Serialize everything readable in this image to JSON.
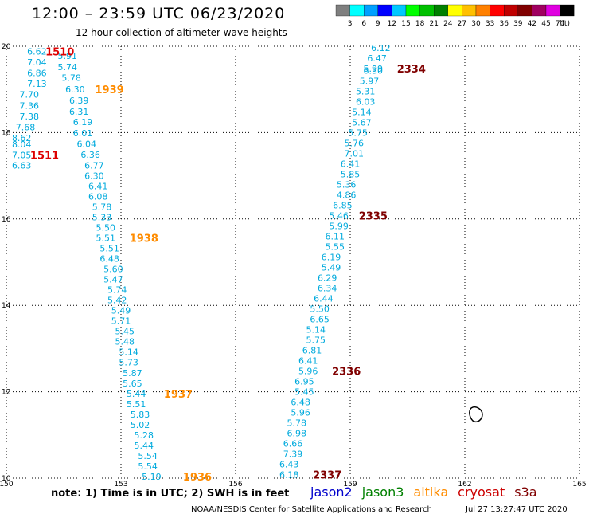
{
  "header": {
    "title": "12:00 – 23:59 UTC 06/23/2020",
    "subtitle": "12 hour collection of altimeter wave heights"
  },
  "colorbar": {
    "unit_label": "(ft)",
    "ticks": [
      "3",
      "6",
      "9",
      "12",
      "15",
      "18",
      "21",
      "24",
      "27",
      "30",
      "33",
      "36",
      "39",
      "42",
      "45",
      "70"
    ],
    "colors": [
      "#7f7f7f",
      "#00ffff",
      "#00a0ff",
      "#0000ff",
      "#00c8ff",
      "#00ff00",
      "#00c000",
      "#008000",
      "#ffff00",
      "#ffc000",
      "#ff8000",
      "#ff0000",
      "#c00000",
      "#800000",
      "#a00060",
      "#e000e0",
      "#000000"
    ]
  },
  "footer": {
    "note": "note: 1) Time is in UTC; 2) SWH is in feet",
    "credit": "NOAA/NESDIS Center for Satellite Applications and Research",
    "timestamp": "Jul 27 13:27:47 UTC 2020"
  },
  "legend": [
    {
      "name": "jason2",
      "color": "#0000cc"
    },
    {
      "name": "jason3",
      "color": "#008000"
    },
    {
      "name": "altika",
      "color": "#ff8c00"
    },
    {
      "name": "cryosat",
      "color": "#cc0000"
    },
    {
      "name": "s3a",
      "color": "#800000"
    }
  ],
  "chart_data": {
    "type": "scatter",
    "xlim": [
      150,
      165
    ],
    "ylim": [
      10,
      20
    ],
    "x_ticks": [
      "150",
      "153",
      "156",
      "159",
      "162",
      "165"
    ],
    "y_ticks": [
      "10",
      "12",
      "14",
      "16",
      "18",
      "20"
    ],
    "grid": true,
    "value_color": "#00aadd",
    "series": [
      {
        "name": "altika track west",
        "points": [
          {
            "x": 150.8,
            "y": 19.88,
            "label": "6.62"
          },
          {
            "x": 151.6,
            "y": 19.78,
            "label": "5.91"
          },
          {
            "x": 150.8,
            "y": 19.63,
            "label": "7.04"
          },
          {
            "x": 151.6,
            "y": 19.52,
            "label": "5.74"
          },
          {
            "x": 150.8,
            "y": 19.38,
            "label": "6.86"
          },
          {
            "x": 151.7,
            "y": 19.27,
            "label": "5.78"
          },
          {
            "x": 150.8,
            "y": 19.13,
            "label": "7.13"
          },
          {
            "x": 151.8,
            "y": 19.0,
            "label": "6.30"
          },
          {
            "x": 150.6,
            "y": 18.88,
            "label": "7.70"
          },
          {
            "x": 151.9,
            "y": 18.75,
            "label": "6.39"
          },
          {
            "x": 150.6,
            "y": 18.63,
            "label": "7.36"
          },
          {
            "x": 151.9,
            "y": 18.49,
            "label": "6.31"
          },
          {
            "x": 150.6,
            "y": 18.38,
            "label": "7.38"
          },
          {
            "x": 152.0,
            "y": 18.25,
            "label": "6.19"
          },
          {
            "x": 150.5,
            "y": 18.13,
            "label": "7.68"
          },
          {
            "x": 152.0,
            "y": 17.99,
            "label": "6.01"
          },
          {
            "x": 150.4,
            "y": 17.88,
            "label": "8.62"
          },
          {
            "x": 152.1,
            "y": 17.74,
            "label": "6.04"
          },
          {
            "x": 150.4,
            "y": 17.73,
            "label": "8.04"
          },
          {
            "x": 152.2,
            "y": 17.49,
            "label": "6.36"
          },
          {
            "x": 150.4,
            "y": 17.48,
            "label": "7.05"
          },
          {
            "x": 150.4,
            "y": 17.24,
            "label": "6.63"
          },
          {
            "x": 152.3,
            "y": 17.24,
            "label": "6.77"
          },
          {
            "x": 152.3,
            "y": 17.0,
            "label": "6.30"
          },
          {
            "x": 152.4,
            "y": 16.76,
            "label": "6.41"
          },
          {
            "x": 152.4,
            "y": 16.52,
            "label": "6.08"
          },
          {
            "x": 152.5,
            "y": 16.28,
            "label": "5.78"
          },
          {
            "x": 152.5,
            "y": 16.04,
            "label": "5.33"
          },
          {
            "x": 152.6,
            "y": 15.8,
            "label": "5.50"
          },
          {
            "x": 152.6,
            "y": 15.56,
            "label": "5.51"
          },
          {
            "x": 152.7,
            "y": 15.32,
            "label": "5.51"
          },
          {
            "x": 152.7,
            "y": 15.08,
            "label": "6.48"
          },
          {
            "x": 152.8,
            "y": 14.84,
            "label": "5.60"
          },
          {
            "x": 152.8,
            "y": 14.6,
            "label": "5.47"
          },
          {
            "x": 152.9,
            "y": 14.36,
            "label": "5.74"
          },
          {
            "x": 152.9,
            "y": 14.12,
            "label": "5.42"
          },
          {
            "x": 153.0,
            "y": 13.88,
            "label": "5.49"
          },
          {
            "x": 153.0,
            "y": 13.64,
            "label": "5.71"
          },
          {
            "x": 153.1,
            "y": 13.4,
            "label": "5.45"
          },
          {
            "x": 153.1,
            "y": 13.16,
            "label": "5.48"
          },
          {
            "x": 153.2,
            "y": 12.92,
            "label": "5.14"
          },
          {
            "x": 153.2,
            "y": 12.68,
            "label": "5.73"
          },
          {
            "x": 153.3,
            "y": 12.44,
            "label": "5.87"
          },
          {
            "x": 153.3,
            "y": 12.2,
            "label": "5.65"
          },
          {
            "x": 153.4,
            "y": 11.96,
            "label": "5.44"
          },
          {
            "x": 153.4,
            "y": 11.72,
            "label": "5.51"
          },
          {
            "x": 153.5,
            "y": 11.48,
            "label": "5.83"
          },
          {
            "x": 153.5,
            "y": 11.24,
            "label": "5.02"
          },
          {
            "x": 153.6,
            "y": 11.0,
            "label": "5.28"
          },
          {
            "x": 153.6,
            "y": 10.76,
            "label": "5.44"
          },
          {
            "x": 153.7,
            "y": 10.52,
            "label": "5.54"
          },
          {
            "x": 153.7,
            "y": 10.28,
            "label": "5.54"
          },
          {
            "x": 153.8,
            "y": 10.04,
            "label": "5.19"
          }
        ]
      },
      {
        "name": "s3a track east",
        "points": [
          {
            "x": 159.8,
            "y": 19.96,
            "label": "6.12"
          },
          {
            "x": 159.7,
            "y": 19.72,
            "label": "6.47"
          },
          {
            "x": 159.6,
            "y": 19.48,
            "label": "5.99"
          },
          {
            "x": 159.6,
            "y": 19.44,
            "label": "6.30"
          },
          {
            "x": 159.5,
            "y": 19.2,
            "label": "5.97"
          },
          {
            "x": 159.4,
            "y": 18.96,
            "label": "5.31"
          },
          {
            "x": 159.4,
            "y": 18.72,
            "label": "6.03"
          },
          {
            "x": 159.3,
            "y": 18.48,
            "label": "5.14"
          },
          {
            "x": 159.3,
            "y": 18.24,
            "label": "5.67"
          },
          {
            "x": 159.2,
            "y": 18.0,
            "label": "5.75"
          },
          {
            "x": 159.1,
            "y": 17.76,
            "label": "5.76"
          },
          {
            "x": 159.1,
            "y": 17.52,
            "label": "7.01"
          },
          {
            "x": 159.0,
            "y": 17.28,
            "label": "6.41"
          },
          {
            "x": 159.0,
            "y": 17.04,
            "label": "5.85"
          },
          {
            "x": 158.9,
            "y": 16.8,
            "label": "5.36"
          },
          {
            "x": 158.9,
            "y": 16.56,
            "label": "4.86"
          },
          {
            "x": 158.8,
            "y": 16.32,
            "label": "6.85"
          },
          {
            "x": 158.7,
            "y": 16.08,
            "label": "5.46"
          },
          {
            "x": 158.7,
            "y": 15.84,
            "label": "5.99"
          },
          {
            "x": 158.6,
            "y": 15.6,
            "label": "6.11"
          },
          {
            "x": 158.6,
            "y": 15.36,
            "label": "5.55"
          },
          {
            "x": 158.5,
            "y": 15.12,
            "label": "6.19"
          },
          {
            "x": 158.5,
            "y": 14.88,
            "label": "5.49"
          },
          {
            "x": 158.4,
            "y": 14.64,
            "label": "6.29"
          },
          {
            "x": 158.4,
            "y": 14.4,
            "label": "6.34"
          },
          {
            "x": 158.3,
            "y": 14.16,
            "label": "6.44"
          },
          {
            "x": 158.2,
            "y": 13.92,
            "label": "5.50"
          },
          {
            "x": 158.2,
            "y": 13.68,
            "label": "6.65"
          },
          {
            "x": 158.1,
            "y": 13.44,
            "label": "5.14"
          },
          {
            "x": 158.1,
            "y": 13.2,
            "label": "5.75"
          },
          {
            "x": 158.0,
            "y": 12.96,
            "label": "6.81"
          },
          {
            "x": 157.9,
            "y": 12.72,
            "label": "6.41"
          },
          {
            "x": 157.9,
            "y": 12.48,
            "label": "5.96"
          },
          {
            "x": 157.8,
            "y": 12.24,
            "label": "6.95"
          },
          {
            "x": 157.8,
            "y": 12.0,
            "label": "5.45"
          },
          {
            "x": 157.7,
            "y": 11.76,
            "label": "6.48"
          },
          {
            "x": 157.7,
            "y": 11.52,
            "label": "5.96"
          },
          {
            "x": 157.6,
            "y": 11.28,
            "label": "5.78"
          },
          {
            "x": 157.6,
            "y": 11.04,
            "label": "6.98"
          },
          {
            "x": 157.5,
            "y": 10.8,
            "label": "6.66"
          },
          {
            "x": 157.5,
            "y": 10.56,
            "label": "7.39"
          },
          {
            "x": 157.4,
            "y": 10.32,
            "label": "6.43"
          },
          {
            "x": 157.4,
            "y": 10.08,
            "label": "6.18"
          }
        ]
      }
    ],
    "time_labels": [
      {
        "x": 151.4,
        "y": 19.88,
        "text": "1510",
        "color": "#dd0000"
      },
      {
        "x": 152.7,
        "y": 19.0,
        "text": "1939",
        "color": "#ff8c00"
      },
      {
        "x": 151.0,
        "y": 17.48,
        "text": "1511",
        "color": "#dd0000"
      },
      {
        "x": 153.6,
        "y": 15.56,
        "text": "1938",
        "color": "#ff8c00"
      },
      {
        "x": 154.5,
        "y": 11.96,
        "text": "1937",
        "color": "#ff8c00"
      },
      {
        "x": 155.0,
        "y": 10.04,
        "text": "1936",
        "color": "#ff8c00"
      },
      {
        "x": 160.6,
        "y": 19.48,
        "text": "2334",
        "color": "#800000"
      },
      {
        "x": 159.6,
        "y": 16.08,
        "text": "2335",
        "color": "#800000"
      },
      {
        "x": 158.9,
        "y": 12.48,
        "text": "2336",
        "color": "#800000"
      },
      {
        "x": 158.4,
        "y": 10.08,
        "text": "2337",
        "color": "#800000"
      }
    ]
  }
}
